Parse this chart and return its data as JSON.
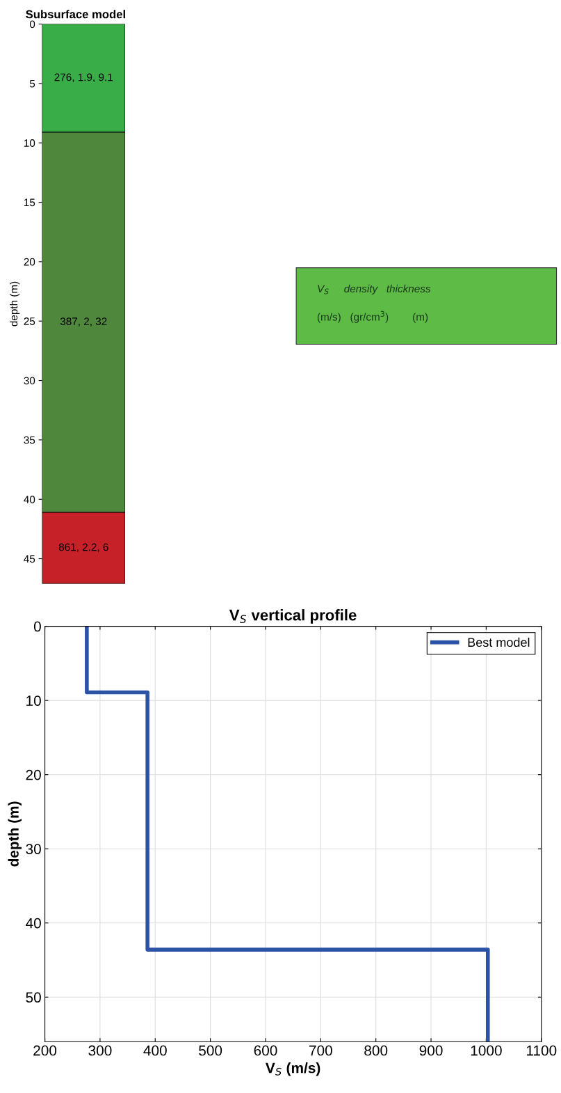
{
  "chart_data": [
    {
      "type": "bar",
      "stacked": true,
      "title": "Subsurface model",
      "ylabel": "depth (m)",
      "categories": [
        null
      ],
      "series": [
        {
          "color": "#38ad48",
          "values": [
            9.1
          ],
          "value_labels": [
            "276, 1.9, 9.1"
          ]
        },
        {
          "color": "#4f883d",
          "values": [
            32
          ],
          "value_labels": [
            "387, 2, 32"
          ]
        },
        {
          "color": "#c62128",
          "values": [
            6
          ],
          "value_labels": [
            "861, 2.2, 6"
          ]
        }
      ],
      "ylim": [
        47.1,
        0
      ],
      "yticks": [
        0,
        5,
        10,
        15,
        20,
        25,
        30,
        35,
        40,
        45
      ],
      "tick_labels": "y",
      "annotations": [
        "V$_{S}$     density   thickness",
        "(m/s)   (gr/cm$^{3}$)        (m)"
      ]
    },
    {
      "type": "line",
      "title": "V$_{S}$ vertical profile",
      "xlabel": "V$_{S}$ (m/s)",
      "ylabel": "depth (m)",
      "series": [
        {
          "name": "Best model",
          "color": "#2a52a6",
          "x": [
            276,
            276,
            386,
            386,
            1003,
            1003
          ],
          "values": [
            0,
            8.9,
            8.9,
            43.6,
            43.6,
            56
          ]
        }
      ],
      "xlim": [
        200,
        1100
      ],
      "xticks": [
        200,
        300,
        400,
        500,
        600,
        700,
        800,
        900,
        1000,
        1100
      ],
      "ylim": [
        56,
        0
      ],
      "yticks": [
        0,
        10,
        20,
        30,
        40,
        50
      ],
      "grid": true,
      "legend": "top right",
      "line_style": "solid",
      "marker": "none"
    }
  ]
}
